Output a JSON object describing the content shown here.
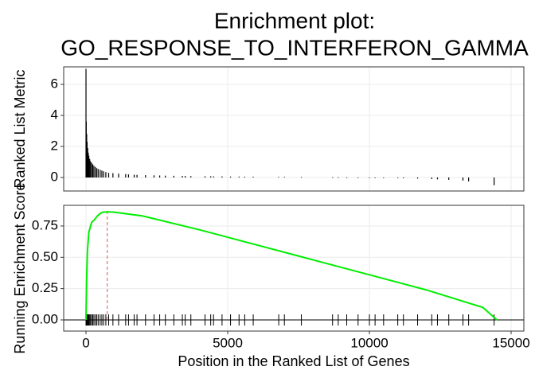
{
  "chart_data": [
    {
      "type": "bar",
      "title": "Enrichment plot:",
      "subtitle": "GO_RESPONSE_TO_INTERFERON_GAMMA",
      "y_label": "Ranked List Metric",
      "color": "#000000",
      "x": [
        0,
        10,
        25,
        40,
        60,
        80,
        100,
        130,
        160,
        200,
        240,
        280,
        330,
        380,
        430,
        500,
        560,
        620,
        700,
        800,
        950,
        1150,
        1400,
        1500,
        1700,
        1800,
        2100,
        2400,
        2600,
        2800,
        3100,
        3400,
        3500,
        3700,
        4200,
        4400,
        4500,
        4800,
        5100,
        5400,
        5600,
        5900,
        6800,
        7000,
        7600,
        8700,
        8900,
        9200,
        9600,
        10000,
        10200,
        10500,
        11000,
        11200,
        11700,
        12200,
        12400,
        12800,
        13300,
        13500,
        14400
      ],
      "values": [
        7,
        3.6,
        2.8,
        2.3,
        1.9,
        1.6,
        1.4,
        1.2,
        1.05,
        0.95,
        0.85,
        0.75,
        0.68,
        0.6,
        0.55,
        0.5,
        0.45,
        0.4,
        0.35,
        0.3,
        0.28,
        0.25,
        0.22,
        0.2,
        0.18,
        0.17,
        0.15,
        0.14,
        0.13,
        0.12,
        0.11,
        0.1,
        0.1,
        0.09,
        0.08,
        0.08,
        0.07,
        0.07,
        0.06,
        0.06,
        0.05,
        0.05,
        0.04,
        0.04,
        0.03,
        0.02,
        0.02,
        0.01,
        0.01,
        0,
        0,
        -0.02,
        -0.03,
        -0.05,
        -0.07,
        -0.1,
        -0.12,
        -0.15,
        -0.2,
        -0.25,
        -0.5
      ],
      "xlim": [
        -787,
        15449
      ],
      "xticks": [
        0,
        5000,
        10000,
        15000
      ],
      "ylim": [
        -0.87,
        7.13
      ],
      "yticks": [
        0,
        2,
        4,
        6
      ],
      "grid": true
    },
    {
      "type": "line",
      "y_label": "Running Enrichment Score",
      "x_label": "Position in the Ranked List of Genes",
      "color": "#00ee00",
      "x": [
        0,
        20,
        50,
        100,
        150,
        200,
        300,
        400,
        500,
        600,
        700,
        750,
        1000,
        2000,
        4000,
        6000,
        8000,
        10000,
        12000,
        14000,
        14500
      ],
      "values": [
        0,
        0.3,
        0.55,
        0.7,
        0.74,
        0.78,
        0.8,
        0.83,
        0.85,
        0.86,
        0.862,
        0.863,
        0.86,
        0.83,
        0.72,
        0.6,
        0.48,
        0.36,
        0.24,
        0.1,
        0
      ],
      "peak_position": 750,
      "peak_color": "#cd5c5c",
      "xlim": [
        -787,
        15449
      ],
      "xticks": [
        0,
        5000,
        10000,
        15000
      ],
      "ylim": [
        -0.089,
        0.915
      ],
      "yticks": [
        {
          "value": 0,
          "label": "0.00"
        },
        {
          "value": 0.25,
          "label": "0.25"
        },
        {
          "value": 0.5,
          "label": "0.50"
        },
        {
          "value": 0.75,
          "label": "0.75"
        }
      ],
      "grid": true
    }
  ]
}
